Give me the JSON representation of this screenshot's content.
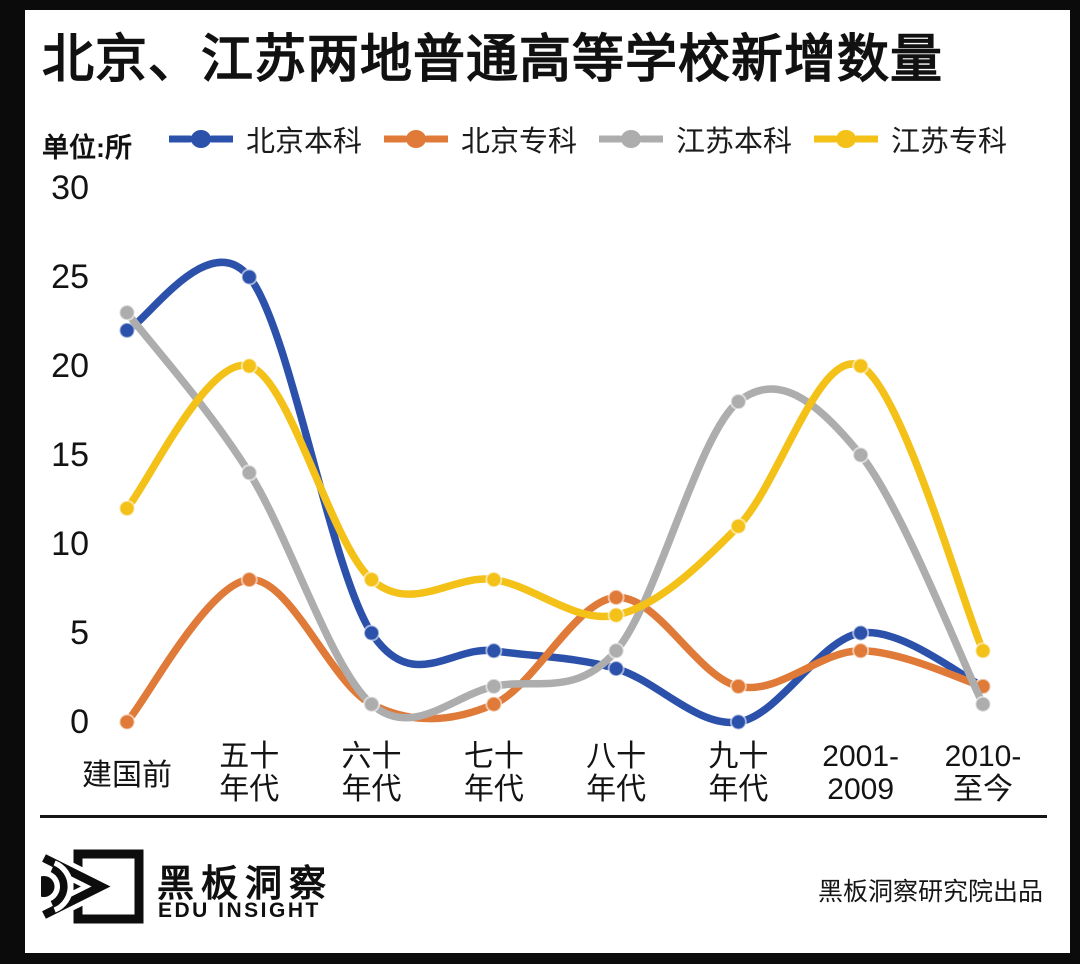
{
  "title": "北京、江苏两地普通高等学校新增数量",
  "unit_label": "单位:所",
  "chart_data": {
    "type": "line",
    "title": "北京、江苏两地普通高等学校新增数量",
    "unit": "所",
    "smooth": true,
    "grid": false,
    "legend_position": "top",
    "ylim": [
      0,
      30
    ],
    "yticks": [
      0,
      5,
      10,
      15,
      20,
      25,
      30
    ],
    "categories": [
      "建国前",
      "五十年代",
      "六十年代",
      "七十年代",
      "八十年代",
      "九十年代",
      "2001-2009",
      "2010-至今"
    ],
    "category_lines": [
      [
        "建国前"
      ],
      [
        "五十",
        "年代"
      ],
      [
        "六十",
        "年代"
      ],
      [
        "七十",
        "年代"
      ],
      [
        "八十",
        "年代"
      ],
      [
        "九十",
        "年代"
      ],
      [
        "2001-",
        "2009"
      ],
      [
        "2010-",
        "至今"
      ]
    ],
    "series": [
      {
        "name": "北京本科",
        "color": "#2C51AB",
        "values": [
          22,
          25,
          5,
          4,
          3,
          0,
          5,
          2
        ]
      },
      {
        "name": "北京专科",
        "color": "#E07A38",
        "values": [
          0,
          8,
          1,
          1,
          7,
          2,
          4,
          2
        ]
      },
      {
        "name": "江苏本科",
        "color": "#ADADAD",
        "values": [
          23,
          14,
          1,
          2,
          4,
          18,
          15,
          1
        ]
      },
      {
        "name": "江苏专科",
        "color": "#F3C117",
        "values": [
          12,
          20,
          8,
          8,
          6,
          11,
          20,
          4
        ]
      }
    ]
  },
  "footer": {
    "logo_title": "黑板洞察",
    "logo_subtitle": "EDU INSIGHT",
    "credit": "黑板洞察研究院出品"
  }
}
